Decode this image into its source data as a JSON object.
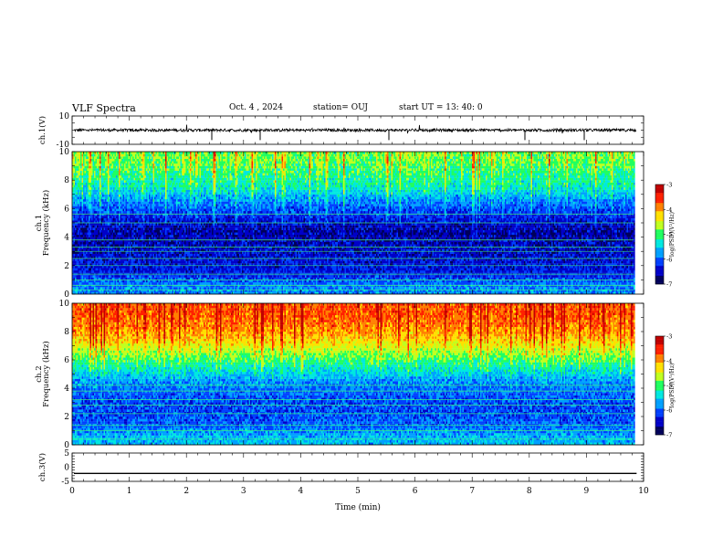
{
  "header": {
    "title": "VLF Spectra",
    "date": "Oct. 4 , 2024",
    "station": "station= OUJ",
    "start": "start  UT =  13: 40: 0"
  },
  "chart_data": [
    {
      "type": "line",
      "panel": "ch1-waveform",
      "ylabel": "ch.1(V)",
      "ylim": [
        -10,
        10
      ],
      "yticks": [
        "10",
        "-10"
      ],
      "xlim": [
        0,
        10
      ],
      "series": [
        {
          "values_note": "",
          "baseline": 0
        }
      ]
    },
    {
      "type": "heatmap",
      "panel": "ch1-spectrogram",
      "ylabel": "ch.1\nFrequency (kHz)",
      "ylabel_lines": [
        "ch.1",
        "Frequency (kHz)"
      ],
      "ylim": [
        0,
        10
      ],
      "yticks": [
        "0",
        "2",
        "4",
        "6",
        "8",
        "10"
      ],
      "xlim": [
        0,
        9.83
      ],
      "colorbar": {
        "label": "log(PSD)(V²/Hz)",
        "range": [
          -7,
          -3
        ],
        "ticks": [
          "-3",
          "-4",
          "-5",
          "-6",
          "-7"
        ]
      },
      "intensity_profile": [
        {
          "f": 0.5,
          "v": -5.8
        },
        {
          "f": 1.5,
          "v": -6.3
        },
        {
          "f": 2.5,
          "v": -6.4
        },
        {
          "f": 3.5,
          "v": -6.5
        },
        {
          "f": 4.5,
          "v": -6.6
        },
        {
          "f": 5.5,
          "v": -6.3
        },
        {
          "f": 6.5,
          "v": -5.9
        },
        {
          "f": 7.5,
          "v": -5.4
        },
        {
          "f": 8.5,
          "v": -5.2
        },
        {
          "f": 9.5,
          "v": -5.0
        }
      ],
      "lines_khz": [
        0.3,
        0.6,
        1.0,
        1.4,
        2.0,
        2.5,
        3.0,
        3.3,
        3.8,
        5.0,
        5.6
      ]
    },
    {
      "type": "heatmap",
      "panel": "ch2-spectrogram",
      "ylabel": "ch.2\nFrequency (kHz)",
      "ylabel_lines": [
        "ch.2",
        "Frequency (kHz)"
      ],
      "ylim": [
        0,
        10
      ],
      "yticks": [
        "0",
        "2",
        "4",
        "6",
        "8",
        "10"
      ],
      "xlim": [
        0,
        9.83
      ],
      "colorbar": {
        "label": "log(PSD)(V²/Hz)",
        "range": [
          -7,
          -3
        ],
        "ticks": [
          "-3",
          "-4",
          "-5",
          "-6",
          "-7"
        ]
      },
      "intensity_profile": [
        {
          "f": 0.5,
          "v": -5.6
        },
        {
          "f": 1.5,
          "v": -6.0
        },
        {
          "f": 2.5,
          "v": -6.1
        },
        {
          "f": 3.5,
          "v": -6.0
        },
        {
          "f": 4.5,
          "v": -5.8
        },
        {
          "f": 5.5,
          "v": -5.3
        },
        {
          "f": 6.5,
          "v": -4.8
        },
        {
          "f": 7.5,
          "v": -4.3
        },
        {
          "f": 8.5,
          "v": -4.0
        },
        {
          "f": 9.5,
          "v": -3.9
        }
      ],
      "lines_khz": [
        0.4,
        1.0,
        1.4,
        2.2,
        2.8,
        3.2,
        3.8,
        4.2
      ]
    },
    {
      "type": "line",
      "panel": "ch3-waveform",
      "ylabel": "ch.3(V)",
      "ylim": [
        -5,
        5
      ],
      "yticks": [
        "5",
        "0",
        "-5"
      ],
      "xlim": [
        0,
        10
      ],
      "series": [
        {
          "constant": -2.2
        }
      ]
    }
  ],
  "xaxis": {
    "label": "Time  (min)",
    "ticks": [
      "0",
      "1",
      "2",
      "3",
      "4",
      "5",
      "6",
      "7",
      "8",
      "9",
      "10"
    ],
    "range": [
      0,
      10
    ]
  },
  "colors": {
    "colormap": [
      "#00005a",
      "#0000c8",
      "#0040ff",
      "#00a0ff",
      "#00e8e0",
      "#20ff60",
      "#c0ff20",
      "#ffe000",
      "#ff8000",
      "#ff2000",
      "#c00000"
    ]
  }
}
